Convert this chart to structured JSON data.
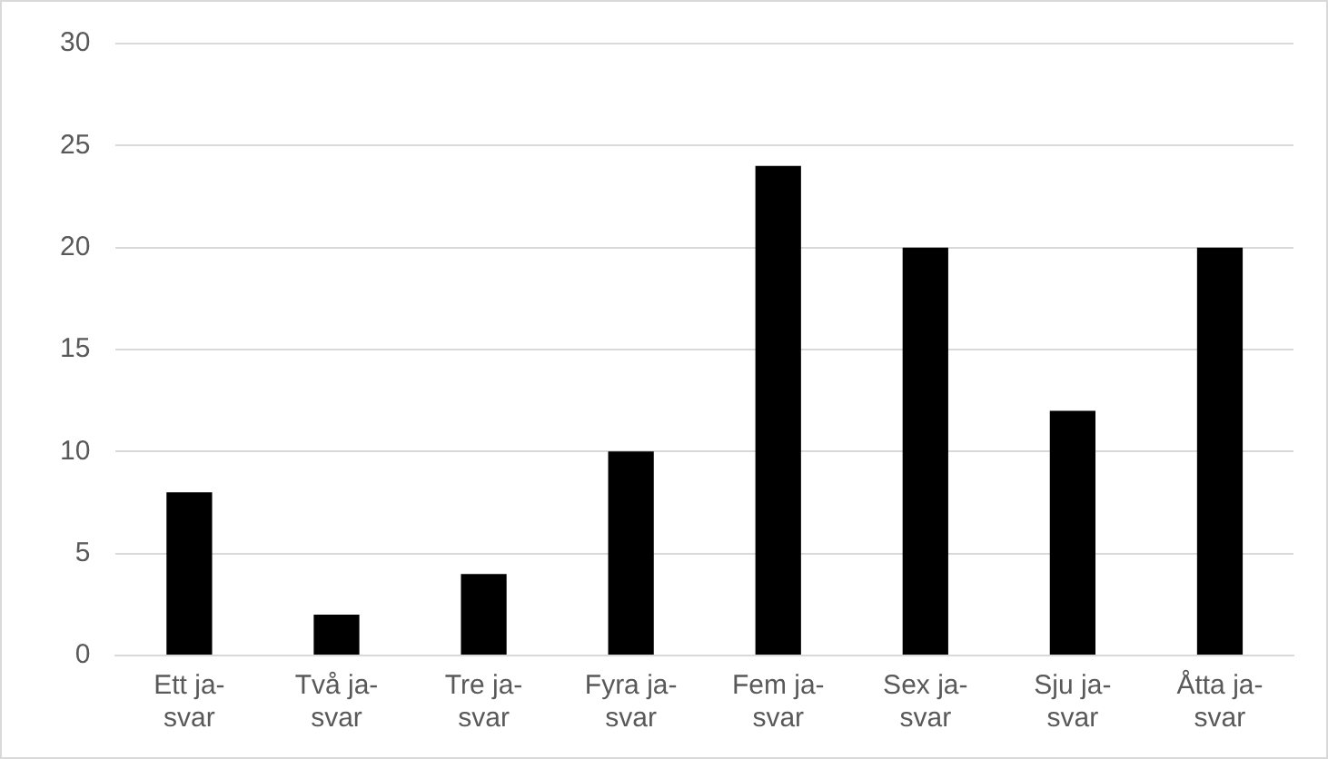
{
  "chart_data": {
    "type": "bar",
    "categories": [
      "Ett ja-svar",
      "Två ja-svar",
      "Tre ja-svar",
      "Fyra ja-svar",
      "Fem ja-svar",
      "Sex ja-svar",
      "Sju ja-svar",
      "Åtta ja-svar"
    ],
    "values": [
      8,
      2,
      4,
      10,
      24,
      20,
      12,
      20
    ],
    "color": "#000000",
    "ylim": [
      0,
      30
    ],
    "yticks": [
      0,
      5,
      10,
      15,
      20,
      25,
      30
    ],
    "grid": "y",
    "legend": false
  }
}
